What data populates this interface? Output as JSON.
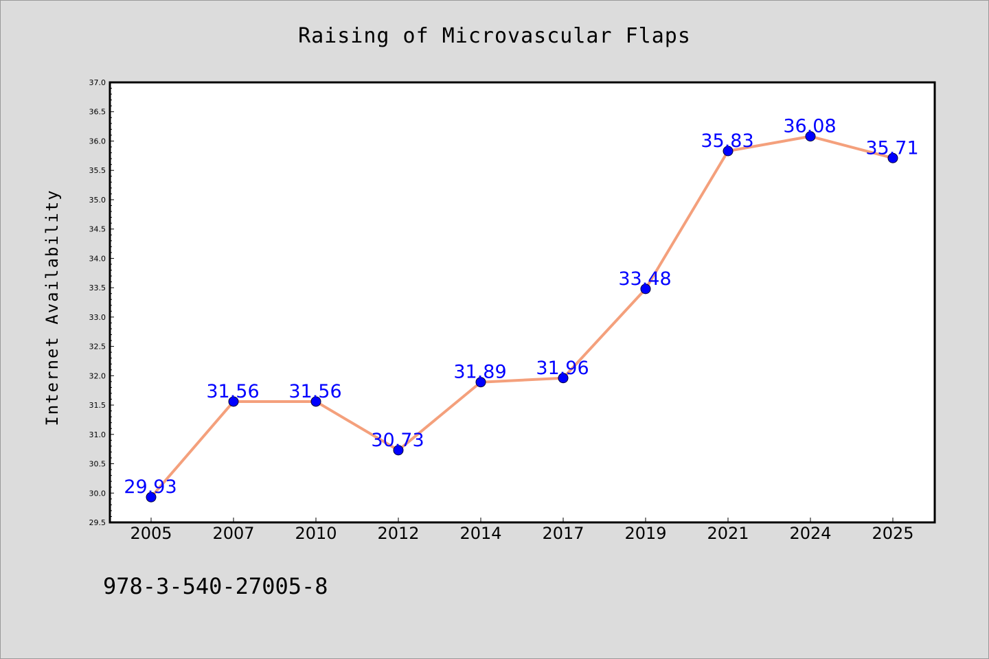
{
  "colors": {
    "background": "#dcdcdc",
    "plot_background": "#ffffff",
    "line": "#f4a07c",
    "marker": "#0000ff",
    "label": "#0000ff"
  },
  "footer_text": "978-3-540-27005-8",
  "chart_data": {
    "type": "line",
    "title": "Raising of Microvascular Flaps",
    "xlabel": "",
    "ylabel": "Internet Availability",
    "categories": [
      "2005",
      "2007",
      "2010",
      "2012",
      "2014",
      "2017",
      "2019",
      "2021",
      "2024",
      "2025"
    ],
    "series": [
      {
        "values": [
          29.93,
          31.56,
          31.56,
          30.73,
          31.89,
          31.96,
          33.48,
          35.83,
          36.08,
          35.71
        ]
      }
    ],
    "data_labels": [
      "29.93",
      "31.56",
      "31.56",
      "30.73",
      "31.89",
      "31.96",
      "33.48",
      "35.83",
      "36.08",
      "35.71"
    ],
    "ylim": [
      29.5,
      37.0
    ],
    "yticks": [
      "29.5",
      "30.0",
      "30.5",
      "31.0",
      "31.5",
      "32.0",
      "32.5",
      "33.0",
      "33.5",
      "34.0",
      "34.5",
      "35.0",
      "35.5",
      "36.0",
      "36.5",
      "37.0"
    ],
    "grid": false,
    "legend": "none"
  }
}
